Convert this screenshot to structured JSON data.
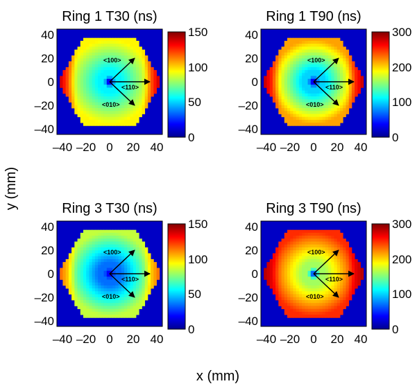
{
  "figure": {
    "xlabel": "x (mm)",
    "ylabel": "y (mm)"
  },
  "chart_data": [
    {
      "type": "heatmap",
      "title": "Ring 1 T30 (ns)",
      "xlim": [
        -45,
        45
      ],
      "ylim": [
        -45,
        45
      ],
      "xticks": [
        "–40",
        "–20",
        "0",
        "20",
        "40"
      ],
      "yticks": [
        "40",
        "20",
        "0",
        "–20",
        "–40"
      ],
      "colorbar": {
        "range": [
          0,
          150
        ],
        "ticks": [
          "150",
          "100",
          "50",
          "0"
        ],
        "values": [
          150,
          100,
          50,
          0
        ]
      },
      "annotations": [
        "<100>",
        "<110>",
        "<010>"
      ],
      "profile": {
        "center": 55,
        "side": 95,
        "corner": 145,
        "core": 0
      }
    },
    {
      "type": "heatmap",
      "title": "Ring 1 T90 (ns)",
      "xlim": [
        -45,
        45
      ],
      "ylim": [
        -45,
        45
      ],
      "xticks": [
        "–40",
        "–20",
        "0",
        "20",
        "40"
      ],
      "yticks": [
        "40",
        "20",
        "0",
        "–20",
        "–40"
      ],
      "colorbar": {
        "range": [
          0,
          300
        ],
        "ticks": [
          "300",
          "200",
          "100",
          "0"
        ],
        "values": [
          300,
          200,
          100,
          0
        ]
      },
      "annotations": [
        "<100>",
        "<110>",
        "<010>"
      ],
      "profile": {
        "center": 100,
        "side": 215,
        "corner": 290,
        "core": 0
      }
    },
    {
      "type": "heatmap",
      "title": "Ring 3 T30 (ns)",
      "xlim": [
        -45,
        45
      ],
      "ylim": [
        -45,
        45
      ],
      "xticks": [
        "–40",
        "–20",
        "0",
        "20",
        "40"
      ],
      "yticks": [
        "40",
        "20",
        "0",
        "–20",
        "–40"
      ],
      "colorbar": {
        "range": [
          0,
          150
        ],
        "ticks": [
          "150",
          "100",
          "50",
          "0"
        ],
        "values": [
          150,
          100,
          50,
          0
        ]
      },
      "annotations": [
        "<100>",
        "<110>",
        "<010>"
      ],
      "profile": {
        "center": 35,
        "side": 85,
        "corner": 120,
        "core": 10
      }
    },
    {
      "type": "heatmap",
      "title": "Ring 3 T90 (ns)",
      "xlim": [
        -45,
        45
      ],
      "ylim": [
        -45,
        45
      ],
      "xticks": [
        "–40",
        "–20",
        "0",
        "20",
        "40"
      ],
      "yticks": [
        "40",
        "20",
        "0",
        "–20",
        "–40"
      ],
      "colorbar": {
        "range": [
          0,
          300
        ],
        "ticks": [
          "300",
          "200",
          "100",
          "0"
        ],
        "values": [
          300,
          200,
          100,
          0
        ]
      },
      "annotations": [
        "<100>",
        "<110>",
        "<010>"
      ],
      "profile": {
        "center": 160,
        "side": 250,
        "corner": 290,
        "core": 20
      }
    }
  ]
}
